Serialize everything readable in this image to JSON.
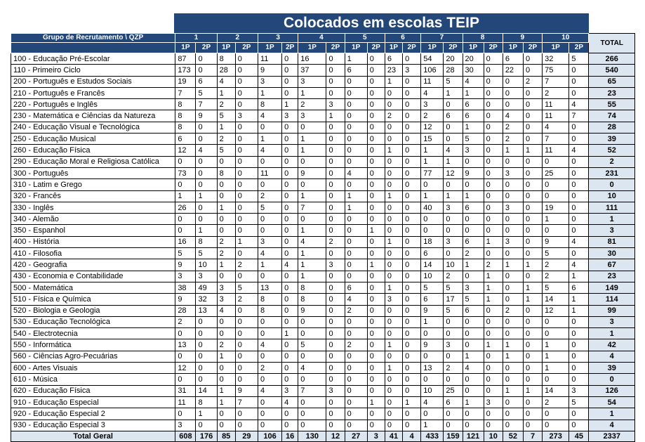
{
  "title": "Colocados em escolas TEIP",
  "header": {
    "group_label": "Grupo de Recrutamento \\ QZP",
    "qzp": [
      "1",
      "2",
      "3",
      "4",
      "5",
      "6",
      "7",
      "8",
      "9",
      "10"
    ],
    "sub": [
      "1P",
      "2P"
    ],
    "total_label": "TOTAL"
  },
  "rows": [
    {
      "label": "100 - Educação Pré-Escolar",
      "values": [
        87,
        0,
        8,
        0,
        11,
        0,
        16,
        0,
        1,
        0,
        6,
        0,
        54,
        20,
        20,
        0,
        6,
        0,
        32,
        5
      ],
      "total": 266
    },
    {
      "label": "110 - Primeiro Ciclo",
      "values": [
        173,
        0,
        28,
        0,
        9,
        0,
        37,
        0,
        6,
        0,
        23,
        3,
        106,
        28,
        30,
        0,
        22,
        0,
        75,
        0
      ],
      "total": 540
    },
    {
      "label": "200 - Português e Estudos Sociais",
      "values": [
        19,
        6,
        4,
        0,
        3,
        0,
        3,
        0,
        0,
        0,
        1,
        0,
        11,
        5,
        4,
        0,
        0,
        2,
        7,
        0
      ],
      "total": 65
    },
    {
      "label": "210 - Português e Francês",
      "values": [
        7,
        5,
        1,
        0,
        1,
        0,
        1,
        0,
        0,
        0,
        0,
        0,
        4,
        1,
        1,
        0,
        0,
        0,
        2,
        0
      ],
      "total": 23
    },
    {
      "label": "220 - Português e Inglês",
      "values": [
        8,
        7,
        2,
        0,
        8,
        1,
        2,
        3,
        0,
        0,
        0,
        0,
        3,
        0,
        6,
        0,
        0,
        0,
        11,
        4
      ],
      "total": 55
    },
    {
      "label": "230 - Matemática e Ciências da Natureza",
      "values": [
        8,
        9,
        5,
        3,
        4,
        3,
        3,
        1,
        0,
        0,
        2,
        0,
        2,
        6,
        6,
        0,
        4,
        0,
        11,
        7
      ],
      "total": 74
    },
    {
      "label": "240 - Educação Visual e Tecnológica",
      "values": [
        8,
        0,
        1,
        0,
        0,
        0,
        0,
        0,
        0,
        0,
        0,
        0,
        12,
        0,
        1,
        0,
        2,
        0,
        4,
        0
      ],
      "total": 28
    },
    {
      "label": "250 - Educação Musical",
      "values": [
        6,
        0,
        2,
        0,
        1,
        0,
        1,
        0,
        0,
        0,
        0,
        0,
        15,
        0,
        5,
        0,
        2,
        0,
        7,
        0
      ],
      "total": 39
    },
    {
      "label": "260 - Educação Física",
      "values": [
        12,
        4,
        5,
        0,
        4,
        0,
        1,
        0,
        0,
        0,
        1,
        0,
        1,
        4,
        3,
        0,
        1,
        1,
        11,
        4
      ],
      "total": 52
    },
    {
      "label": "290 - Educação Moral e Religiosa Católica",
      "values": [
        0,
        0,
        0,
        0,
        0,
        0,
        0,
        0,
        0,
        0,
        0,
        0,
        1,
        1,
        0,
        0,
        0,
        0,
        0,
        0
      ],
      "total": 2
    },
    {
      "label": "300 - Português",
      "values": [
        73,
        0,
        8,
        0,
        11,
        0,
        9,
        0,
        4,
        0,
        0,
        0,
        77,
        12,
        9,
        0,
        3,
        0,
        25,
        0
      ],
      "total": 231
    },
    {
      "label": "310 - Latim e Grego",
      "values": [
        0,
        0,
        0,
        0,
        0,
        0,
        0,
        0,
        0,
        0,
        0,
        0,
        0,
        0,
        0,
        0,
        0,
        0,
        0,
        0
      ],
      "total": 0
    },
    {
      "label": "320 - Francês",
      "values": [
        1,
        1,
        0,
        0,
        2,
        0,
        1,
        0,
        1,
        0,
        1,
        0,
        1,
        1,
        1,
        0,
        0,
        0,
        0,
        0
      ],
      "total": 10
    },
    {
      "label": "330 - Inglês",
      "values": [
        26,
        0,
        1,
        0,
        5,
        0,
        7,
        0,
        1,
        0,
        0,
        0,
        40,
        3,
        6,
        0,
        3,
        0,
        19,
        0
      ],
      "total": 111
    },
    {
      "label": "340 - Alemão",
      "values": [
        0,
        0,
        0,
        0,
        0,
        0,
        0,
        0,
        0,
        0,
        0,
        0,
        0,
        0,
        0,
        0,
        0,
        0,
        1,
        0
      ],
      "total": 1
    },
    {
      "label": "350 - Espanhol",
      "values": [
        0,
        1,
        0,
        0,
        0,
        0,
        1,
        0,
        0,
        1,
        0,
        0,
        0,
        0,
        0,
        0,
        0,
        0,
        0,
        0
      ],
      "total": 3
    },
    {
      "label": "400 - História",
      "values": [
        16,
        8,
        2,
        1,
        3,
        0,
        4,
        2,
        0,
        0,
        1,
        0,
        18,
        3,
        6,
        1,
        3,
        0,
        9,
        4
      ],
      "total": 81
    },
    {
      "label": "410 - Filosofia",
      "values": [
        5,
        5,
        2,
        0,
        4,
        0,
        1,
        0,
        0,
        0,
        0,
        0,
        6,
        0,
        2,
        0,
        0,
        0,
        5,
        0
      ],
      "total": 30
    },
    {
      "label": "420 - Geografia",
      "values": [
        9,
        10,
        1,
        2,
        1,
        4,
        1,
        3,
        0,
        1,
        0,
        0,
        14,
        10,
        1,
        2,
        1,
        1,
        2,
        4
      ],
      "total": 67
    },
    {
      "label": "430 - Economia  e Contabilidade",
      "values": [
        3,
        3,
        0,
        0,
        0,
        0,
        1,
        0,
        0,
        0,
        0,
        0,
        10,
        2,
        0,
        1,
        0,
        0,
        2,
        1
      ],
      "total": 23
    },
    {
      "label": "500 - Matemática",
      "values": [
        38,
        49,
        3,
        5,
        13,
        0,
        8,
        0,
        6,
        0,
        1,
        0,
        5,
        5,
        3,
        1,
        0,
        1,
        5,
        6
      ],
      "total": 149
    },
    {
      "label": "510 - Física e Química",
      "values": [
        9,
        32,
        3,
        2,
        8,
        0,
        8,
        0,
        4,
        0,
        3,
        0,
        6,
        17,
        5,
        1,
        0,
        1,
        14,
        1
      ],
      "total": 114
    },
    {
      "label": "520 - Biologia e Geologia",
      "values": [
        28,
        13,
        4,
        0,
        8,
        0,
        9,
        0,
        2,
        0,
        0,
        0,
        9,
        5,
        6,
        0,
        2,
        0,
        12,
        1
      ],
      "total": 99
    },
    {
      "label": "530 - Educação Tecnológica",
      "values": [
        2,
        0,
        0,
        0,
        0,
        0,
        0,
        0,
        0,
        0,
        0,
        0,
        1,
        0,
        0,
        0,
        0,
        0,
        0,
        0
      ],
      "total": 3
    },
    {
      "label": "540 - Electrotecnia",
      "values": [
        0,
        0,
        0,
        0,
        0,
        1,
        0,
        0,
        0,
        0,
        0,
        0,
        0,
        0,
        0,
        0,
        0,
        0,
        0,
        0
      ],
      "total": 1
    },
    {
      "label": "550 - Informática",
      "values": [
        13,
        0,
        2,
        0,
        4,
        0,
        5,
        0,
        2,
        0,
        1,
        0,
        9,
        3,
        0,
        1,
        1,
        0,
        1,
        0
      ],
      "total": 42
    },
    {
      "label": "560 - Ciências Agro-Pecuárias",
      "values": [
        0,
        0,
        1,
        0,
        0,
        0,
        0,
        0,
        0,
        0,
        0,
        0,
        0,
        0,
        1,
        0,
        1,
        0,
        1,
        0
      ],
      "total": 4
    },
    {
      "label": "600 - Artes Visuais",
      "values": [
        12,
        0,
        0,
        0,
        2,
        0,
        4,
        0,
        0,
        0,
        1,
        0,
        13,
        2,
        4,
        0,
        0,
        0,
        1,
        0
      ],
      "total": 39
    },
    {
      "label": "610 - Música",
      "values": [
        0,
        0,
        0,
        0,
        0,
        0,
        0,
        0,
        0,
        0,
        0,
        0,
        0,
        0,
        0,
        0,
        0,
        0,
        0,
        0
      ],
      "total": 0
    },
    {
      "label": "620 - Educação Física",
      "values": [
        31,
        14,
        1,
        9,
        4,
        3,
        7,
        3,
        0,
        0,
        0,
        0,
        10,
        25,
        0,
        0,
        1,
        1,
        14,
        3
      ],
      "total": 126
    },
    {
      "label": "910 - Educação Especial",
      "values": [
        11,
        8,
        1,
        7,
        0,
        4,
        0,
        0,
        0,
        1,
        0,
        1,
        4,
        6,
        1,
        3,
        0,
        0,
        2,
        5
      ],
      "total": 54
    },
    {
      "label": "920 - Educação Especial 2",
      "values": [
        0,
        1,
        0,
        0,
        0,
        0,
        0,
        0,
        0,
        0,
        0,
        0,
        0,
        0,
        0,
        0,
        0,
        0,
        0,
        0
      ],
      "total": 1
    },
    {
      "label": "930 - Educação Especial 3",
      "values": [
        3,
        0,
        0,
        0,
        0,
        0,
        0,
        0,
        0,
        0,
        0,
        0,
        1,
        0,
        0,
        0,
        0,
        0,
        0,
        0
      ],
      "total": 4
    }
  ],
  "grand_total": {
    "label": "Total Geral",
    "values": [
      608,
      176,
      85,
      29,
      106,
      16,
      130,
      12,
      27,
      3,
      41,
      4,
      433,
      159,
      121,
      10,
      52,
      7,
      273,
      45
    ],
    "total": 2337
  }
}
